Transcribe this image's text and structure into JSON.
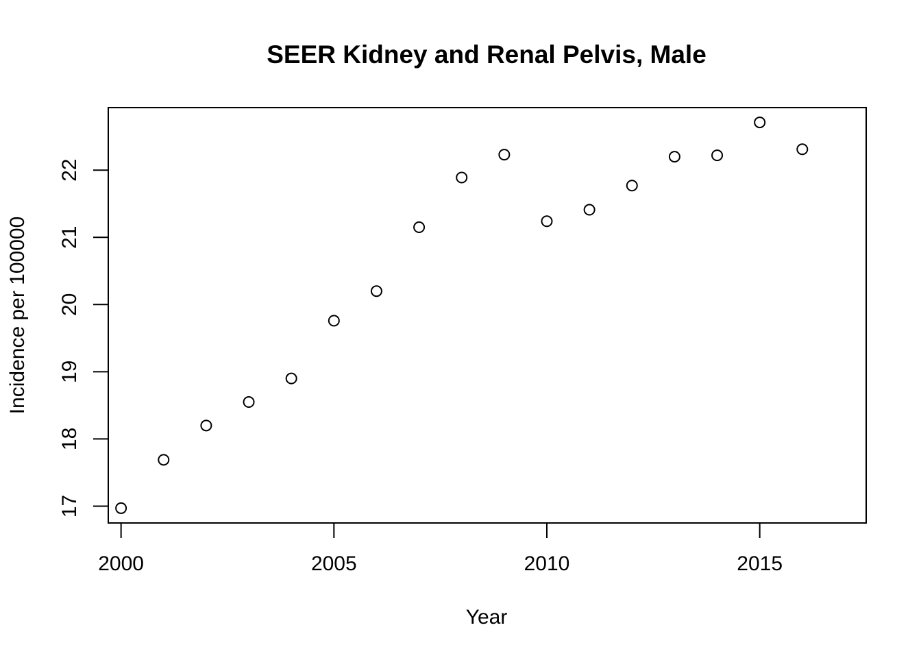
{
  "chart_data": {
    "type": "scatter",
    "title": "SEER Kidney and Renal Pelvis, Male",
    "xlabel": "Year",
    "ylabel": "Incidence per 100000",
    "xlim": [
      1999.7,
      2017.5
    ],
    "ylim": [
      16.75,
      22.93
    ],
    "x_ticks": [
      2000,
      2005,
      2010,
      2015
    ],
    "y_ticks": [
      17,
      18,
      19,
      20,
      21,
      22
    ],
    "x_tick_labels": [
      "2000",
      "2005",
      "2010",
      "2015"
    ],
    "y_tick_labels": [
      "17",
      "18",
      "19",
      "20",
      "21",
      "22"
    ],
    "grid": false,
    "marker": "open-circle",
    "series": [
      {
        "x": [
          2000,
          2001,
          2002,
          2003,
          2004,
          2005,
          2006,
          2007,
          2008,
          2009,
          2010,
          2011,
          2012,
          2013,
          2014,
          2015,
          2016
        ],
        "y": [
          16.97,
          17.69,
          18.2,
          18.55,
          18.9,
          19.76,
          20.2,
          21.15,
          21.89,
          22.23,
          21.24,
          21.41,
          21.77,
          22.2,
          22.22,
          22.71,
          22.31
        ]
      }
    ]
  }
}
